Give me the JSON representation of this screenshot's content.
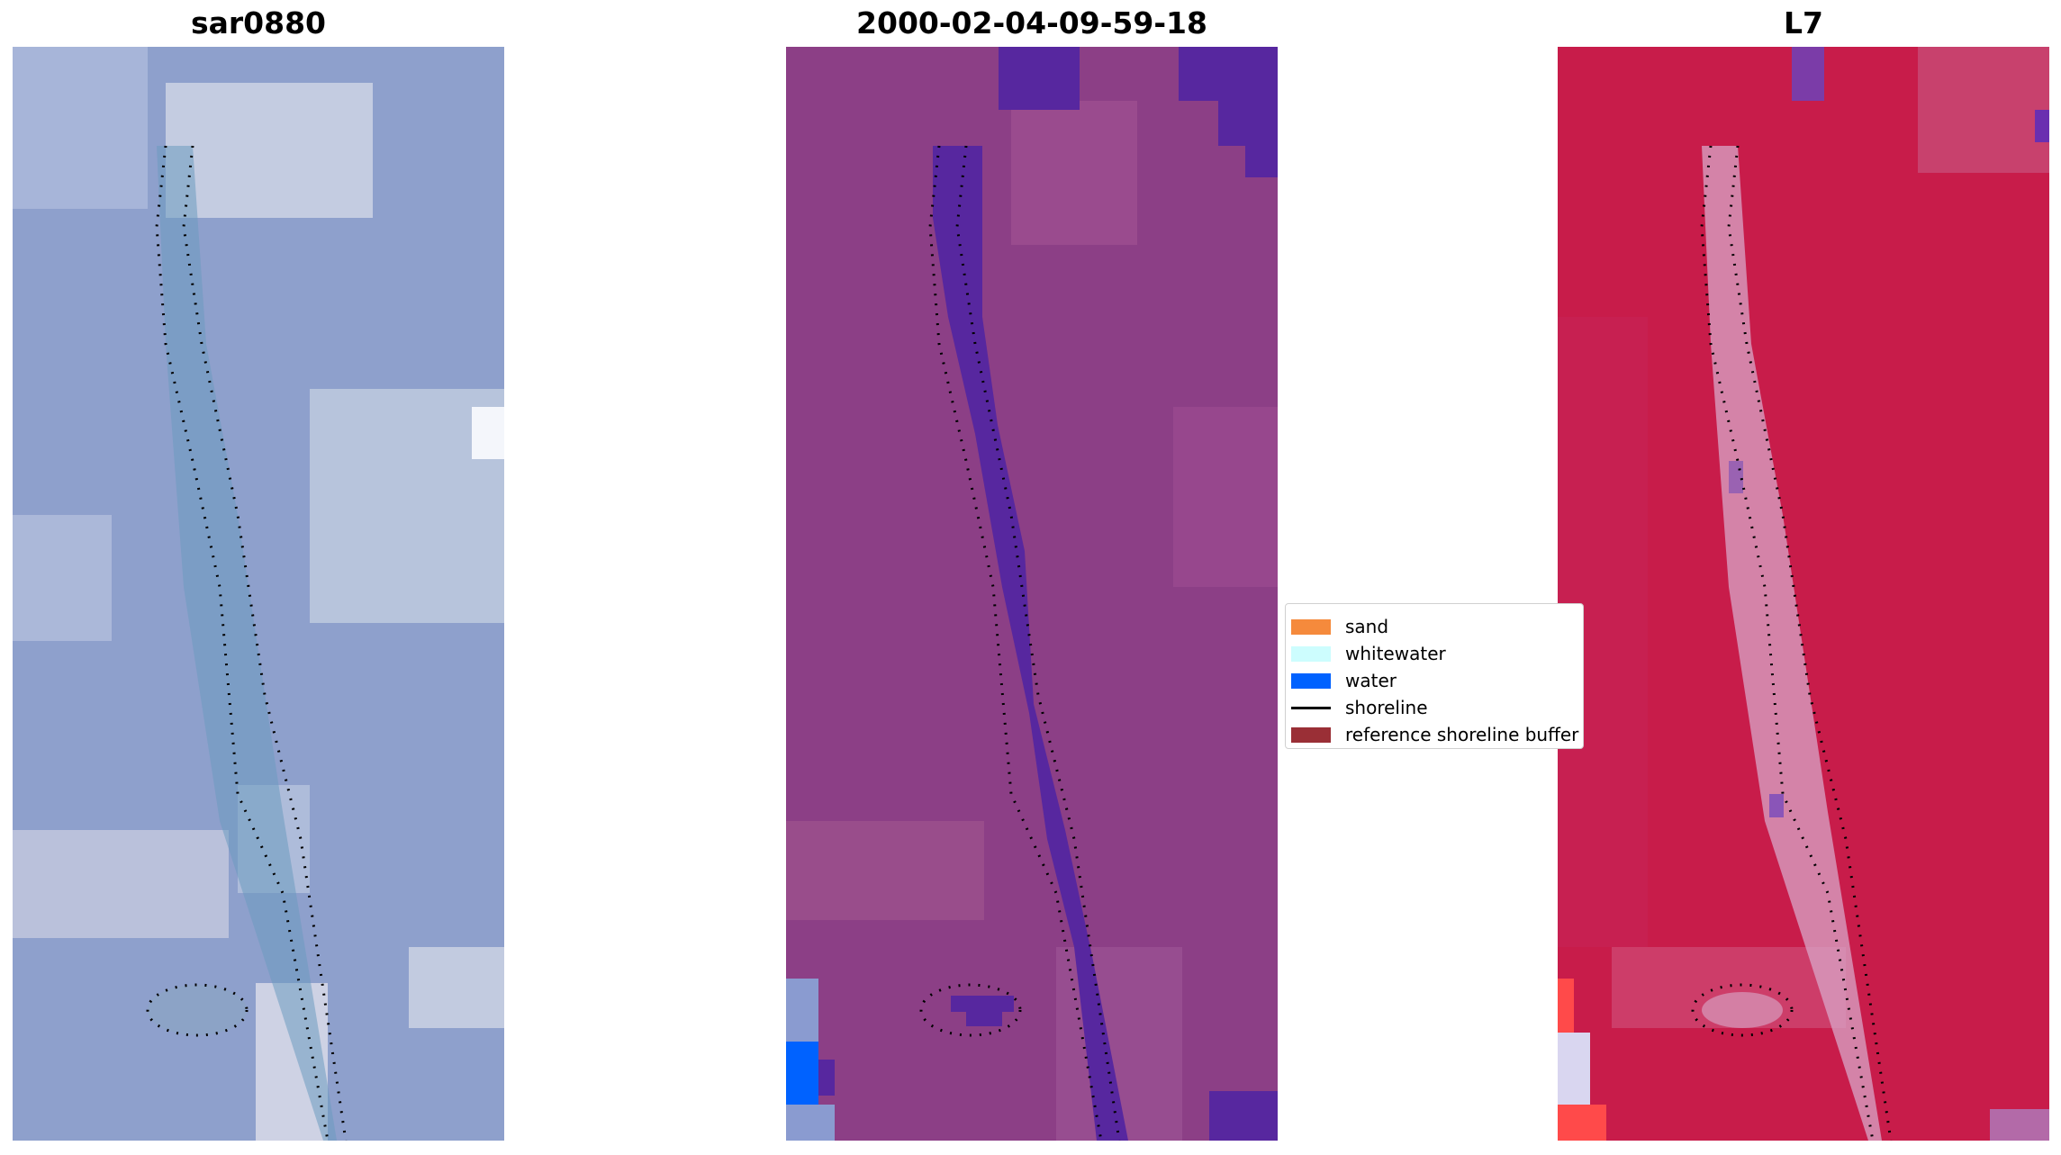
{
  "panels": [
    {
      "title": "sar0880"
    },
    {
      "title": "2000-02-04-09-59-18"
    },
    {
      "title": "L7"
    }
  ],
  "legend": {
    "items": [
      {
        "label": "sand",
        "color": "#f58a3c",
        "kind": "patch"
      },
      {
        "label": "whitewater",
        "color": "#cdfdfe",
        "kind": "patch"
      },
      {
        "label": "water",
        "color": "#0062ff",
        "kind": "patch"
      },
      {
        "label": "shoreline",
        "color": "#000000",
        "kind": "line"
      },
      {
        "label": "reference shoreline buffer",
        "color": "#9a2f36",
        "kind": "patch"
      }
    ]
  },
  "colors": {
    "rgb_base": "#8ea0cc",
    "classified_base": "#8c3f86",
    "classified_water": "#57279f",
    "swir_base": "#c81c4a",
    "swir_channel": "#d8a6c8"
  }
}
